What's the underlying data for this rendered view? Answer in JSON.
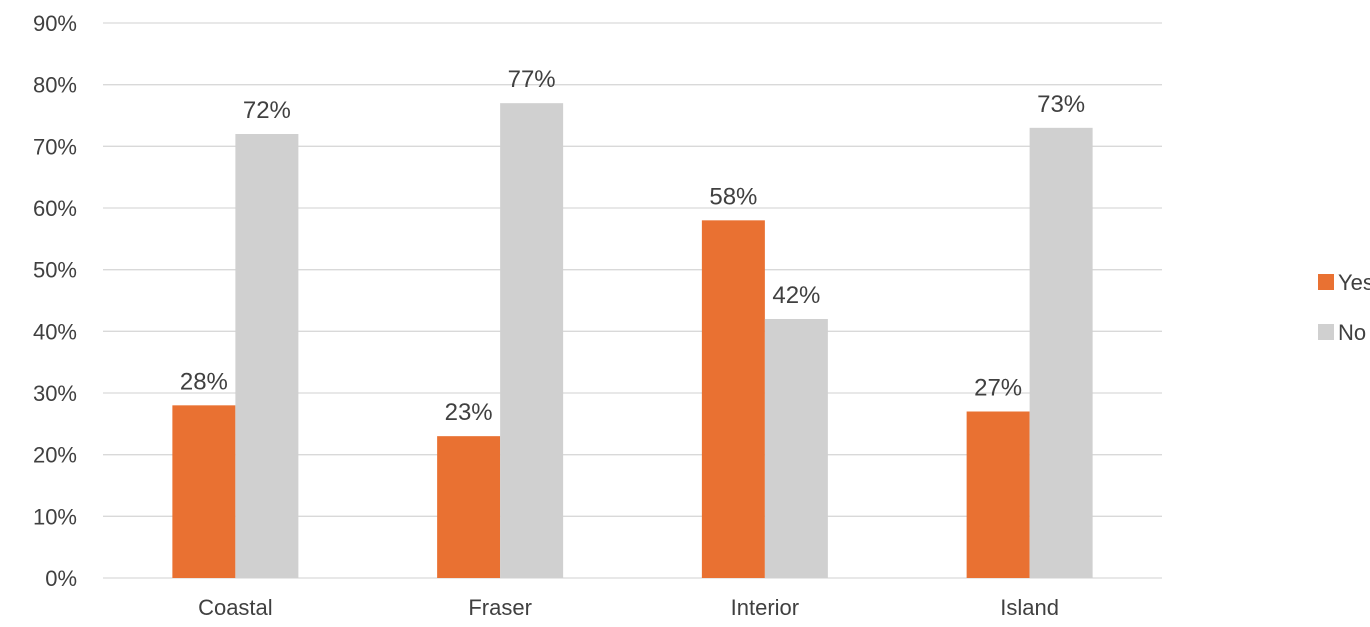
{
  "chart_data": {
    "type": "bar",
    "title": "",
    "xlabel": "",
    "ylabel": "",
    "categories": [
      "Coastal",
      "Fraser",
      "Interior",
      "Island"
    ],
    "series": [
      {
        "name": "Yes",
        "values": [
          28,
          23,
          58,
          27
        ],
        "labels": [
          "28%",
          "23%",
          "58%",
          "27%"
        ],
        "color": "#E97132"
      },
      {
        "name": "No",
        "values": [
          72,
          77,
          42,
          73
        ],
        "labels": [
          "72%",
          "77%",
          "42%",
          "73%"
        ],
        "color": "#D0D0D0"
      }
    ],
    "ylim": [
      0,
      90
    ],
    "yticks": [
      "0%",
      "10%",
      "20%",
      "30%",
      "40%",
      "50%",
      "60%",
      "70%",
      "80%",
      "90%"
    ],
    "grid": true,
    "legend_position": "right"
  }
}
